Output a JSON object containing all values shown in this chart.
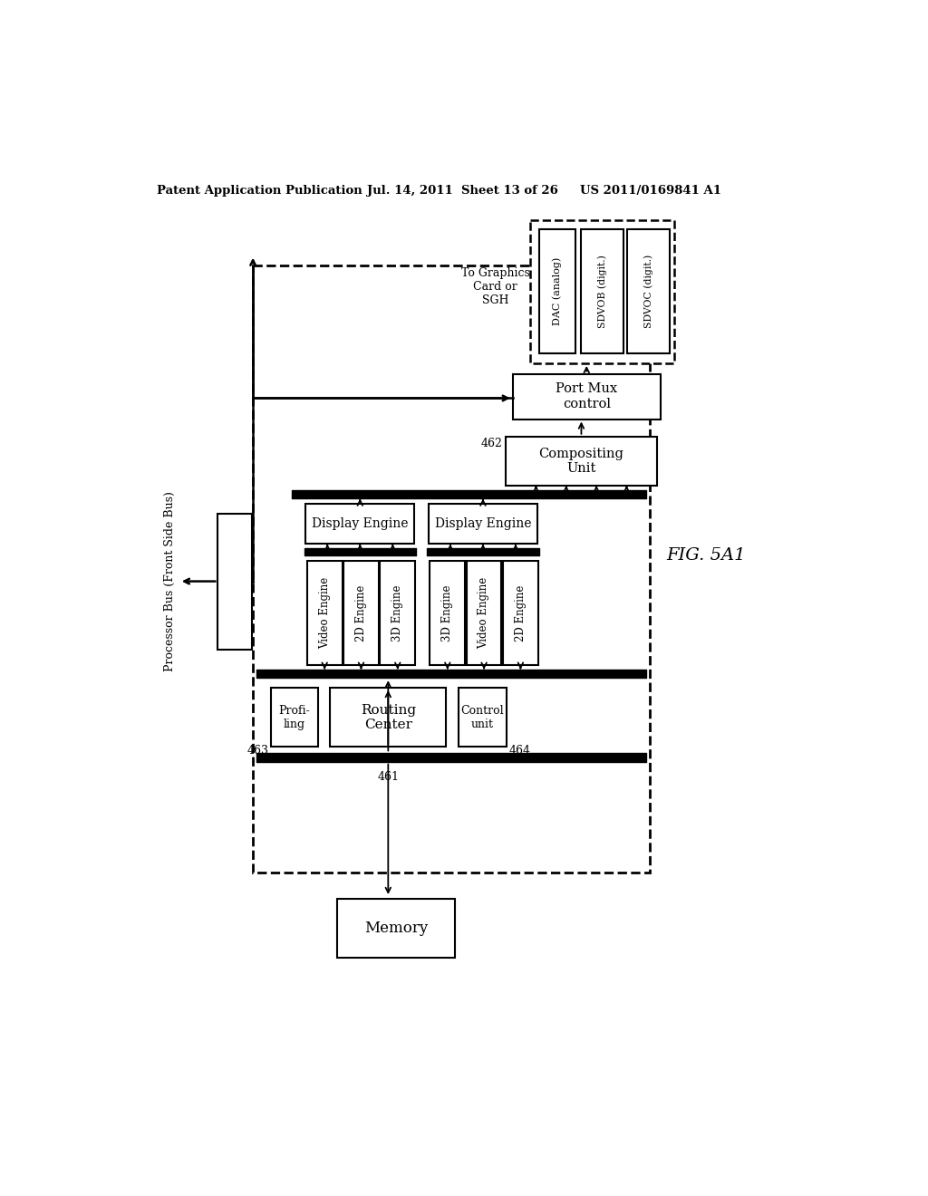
{
  "title_left": "Patent Application Publication",
  "title_mid": "Jul. 14, 2011  Sheet 13 of 26",
  "title_right": "US 2011/0169841 A1",
  "fig_label": "FIG. 5A1",
  "background": "#ffffff"
}
